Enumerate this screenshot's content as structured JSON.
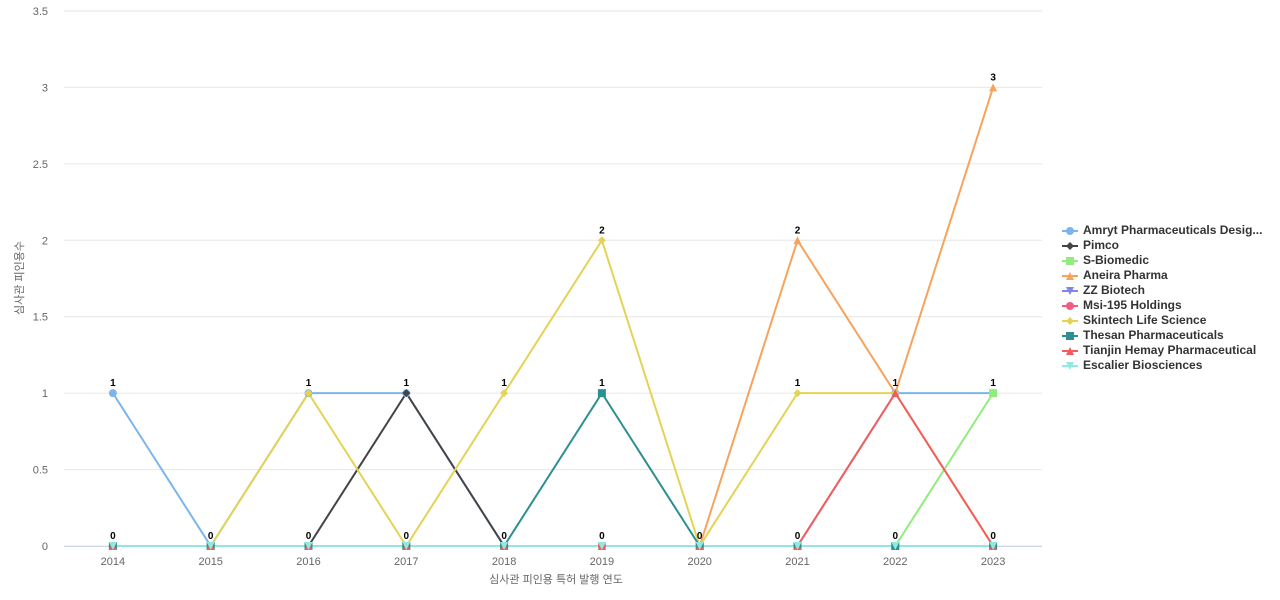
{
  "chart_data": {
    "type": "line",
    "x_label": "심사관 피인용 특허 발행 연도",
    "y_label": "심사관 피인용수",
    "categories": [
      "2014",
      "2015",
      "2016",
      "2017",
      "2018",
      "2019",
      "2020",
      "2021",
      "2022",
      "2023"
    ],
    "ylim": [
      0,
      3.5
    ],
    "yticks": [
      0,
      0.5,
      1,
      1.5,
      2,
      2.5,
      3,
      3.5
    ],
    "grid": true,
    "legend": "right",
    "series": [
      {
        "name": "Amryt Pharmaceuticals Desig...",
        "color": "#7cb5ec",
        "marker": "circle",
        "values": [
          1,
          0,
          1,
          1,
          0,
          0,
          0,
          0,
          1,
          1
        ]
      },
      {
        "name": "Pimco",
        "color": "#434348",
        "marker": "diamond",
        "values": [
          0,
          0,
          0,
          1,
          0,
          0,
          0,
          0,
          0,
          0
        ]
      },
      {
        "name": "S-Biomedic",
        "color": "#90ed7d",
        "marker": "square",
        "values": [
          0,
          0,
          0,
          0,
          0,
          0,
          0,
          0,
          0,
          1
        ]
      },
      {
        "name": "Aneira Pharma",
        "color": "#f7a35c",
        "marker": "triangle",
        "values": [
          0,
          0,
          0,
          0,
          0,
          0,
          0,
          2,
          1,
          3
        ]
      },
      {
        "name": "ZZ Biotech",
        "color": "#8085e9",
        "marker": "triangle-down",
        "values": [
          0,
          0,
          0,
          0,
          0,
          0,
          0,
          0,
          0,
          0
        ]
      },
      {
        "name": "Msi-195 Holdings",
        "color": "#f15c80",
        "marker": "circle",
        "values": [
          0,
          0,
          0,
          0,
          0,
          0,
          0,
          0,
          0,
          0
        ]
      },
      {
        "name": "Skintech Life Science",
        "color": "#e4d354",
        "marker": "diamond",
        "values": [
          0,
          0,
          1,
          0,
          1,
          2,
          0,
          1,
          1,
          0
        ]
      },
      {
        "name": "Thesan Pharmaceuticals",
        "color": "#2b908f",
        "marker": "square",
        "values": [
          0,
          0,
          0,
          0,
          0,
          1,
          0,
          0,
          0,
          0
        ]
      },
      {
        "name": "Tianjin Hemay Pharmaceutical",
        "color": "#f45b5b",
        "marker": "triangle",
        "values": [
          0,
          0,
          0,
          0,
          0,
          0,
          0,
          0,
          1,
          0
        ]
      },
      {
        "name": "Escalier Biosciences",
        "color": "#91e8e1",
        "marker": "triangle-down",
        "values": [
          0,
          0,
          0,
          0,
          0,
          0,
          0,
          0,
          0,
          0
        ]
      }
    ]
  }
}
